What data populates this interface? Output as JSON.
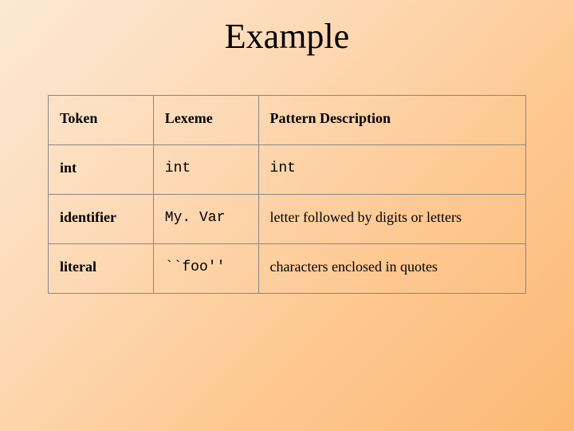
{
  "slide": {
    "title": "Example",
    "background_gradient": {
      "start": "#fce9d4",
      "mid1": "#fdd9b5",
      "mid2": "#fdc891",
      "end": "#fcb874",
      "angle_deg": 135
    },
    "title_fontsize": 44,
    "title_fontfamily": "Times New Roman",
    "title_color": "#000000"
  },
  "table": {
    "type": "table",
    "border_color": "#888888",
    "background_color": "transparent",
    "header_font": "Times New Roman",
    "header_fontweight": "bold",
    "header_fontsize": 18,
    "body_fontsize": 18,
    "mono_font": "Courier New",
    "serif_font": "Times New Roman",
    "column_widths_pct": [
      22,
      22,
      56
    ],
    "columns": [
      {
        "label": "Token"
      },
      {
        "label": "Lexeme"
      },
      {
        "label": "Pattern Description"
      }
    ],
    "rows": [
      {
        "token": "int",
        "lexeme": "int",
        "pattern": "int",
        "pattern_mono": true
      },
      {
        "token": "identifier",
        "lexeme": "My. Var",
        "pattern": "letter followed by digits or letters",
        "pattern_mono": false
      },
      {
        "token": "literal",
        "lexeme": "``foo''",
        "pattern": "characters enclosed in quotes",
        "pattern_mono": false
      }
    ]
  }
}
